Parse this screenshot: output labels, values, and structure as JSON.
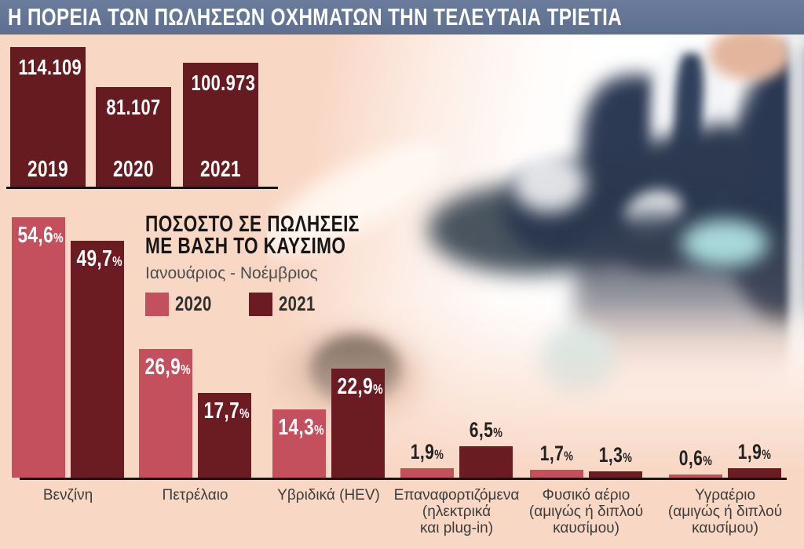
{
  "header": {
    "title": "Η ΠΟΡΕΙΑ ΤΩΝ ΠΩΛΗΣΕΩΝ ΟΧΗΜΑΤΩΝ ΤΗΝ ΤΕΛΕΥΤΑΙΑ ΤΡΙΕΤΙΑ"
  },
  "palette": {
    "background": "#f9d7c5",
    "header_bg": "#63748f",
    "annual_bar": "#661b20",
    "bar_2020": "#c4505e",
    "bar_2021": "#6b1c23",
    "axis": "#141414",
    "label_on_bar": "#ffffff",
    "label_above_bar": "#222222",
    "heading_text": "#161616",
    "subtitle_text": "#4d4d4d"
  },
  "chart_data": [
    {
      "type": "bar",
      "name": "annual-vehicle-sales",
      "categories": [
        "2019",
        "2020",
        "2021"
      ],
      "values": [
        114109,
        81107,
        100973
      ],
      "value_labels": [
        "114.109",
        "81.107",
        "100.973"
      ],
      "bar_color": "#661b20",
      "ylim": [
        0,
        120000
      ],
      "grid": false,
      "legend_position": "none"
    },
    {
      "type": "bar",
      "name": "sales-share-by-fuel",
      "title_lines": [
        "ΠΟΣΟΣΤΟ ΣΕ ΠΩΛΗΣΕΙΣ",
        "ΜΕ ΒΑΣΗ ΤΟ ΚΑΥΣΙΜΟ"
      ],
      "title": "ΠΟΣΟΣΤΟ ΣΕ ΠΩΛΗΣΕΙΣ ΜΕ ΒΑΣΗ ΤΟ ΚΑΥΣΙΜΟ",
      "subtitle": "Ιανουάριος - Νοέμβριος",
      "legend": [
        {
          "label": "2020",
          "color": "#c4505e"
        },
        {
          "label": "2021",
          "color": "#6b1c23"
        }
      ],
      "legend_position": "top-left",
      "categories": [
        "Βενζίνη",
        "Πετρέλαιο",
        "Υβριδικά (HEV)",
        "Επαναφορτιζόμενα (ηλεκτρικά και plug-in)",
        "Φυσικό αέριο (αμιγώς ή διπλού καυσίμου)",
        "Υγραέριο (αμιγώς ή διπλού καυσίμου)"
      ],
      "category_lines": [
        [
          "Βενζίνη"
        ],
        [
          "Πετρέλαιο"
        ],
        [
          "Υβριδικά (HEV)"
        ],
        [
          "Επαναφορτιζόμενα",
          "(ηλεκτρικά",
          "και plug-in)"
        ],
        [
          "Φυσικό αέριο",
          "(αμιγώς ή διπλού",
          "καυσίμου)"
        ],
        [
          "Υγραέριο",
          "(αμιγώς ή διπλού",
          "καυσίμου)"
        ]
      ],
      "series": [
        {
          "name": "2020",
          "color": "#c4505e",
          "values": [
            54.6,
            26.9,
            14.3,
            1.9,
            1.7,
            0.6
          ],
          "labels": [
            "54,6%",
            "26,9%",
            "14,3%",
            "1,9%",
            "1,7%",
            "0,6%"
          ]
        },
        {
          "name": "2021",
          "color": "#6b1c23",
          "values": [
            49.7,
            17.7,
            22.9,
            6.5,
            1.3,
            1.9
          ],
          "labels": [
            "49,7%",
            "17,7%",
            "22,9%",
            "6,5%",
            "1,3%",
            "1,9%"
          ]
        }
      ],
      "ylim": [
        0,
        60
      ],
      "grid": false,
      "unit": "%"
    }
  ]
}
